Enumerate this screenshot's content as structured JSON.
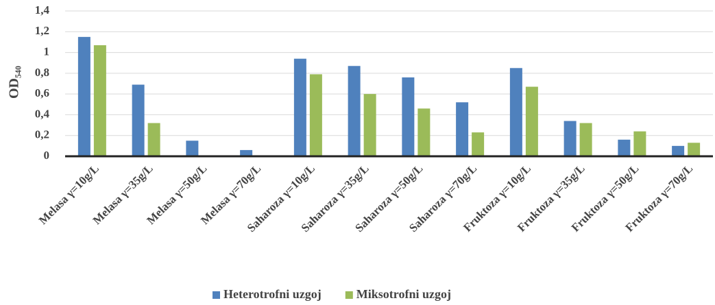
{
  "chart_data": {
    "type": "bar",
    "y_label": "OD₅₄₀",
    "categories": [
      "Melasa γ=10g/L",
      "Melasa γ=35g/L",
      "Melasa γ=50g/L",
      "Melasa γ=70g/L",
      "Saharoza γ=10g/L",
      "Saharoza γ=35g/L",
      "Saharoza γ=50g/L",
      "Saharoza γ=70g/L",
      "Fruktoza γ=10g/L",
      "Fruktoza γ=35g/L",
      "Fruktoza γ=50g/L",
      "Fruktoza γ=70g/L"
    ],
    "series": [
      {
        "name": "Heterotrofni uzgoj",
        "color": "#4f81bd",
        "values": [
          1.15,
          0.69,
          0.15,
          0.06,
          0.94,
          0.87,
          0.76,
          0.52,
          0.85,
          0.34,
          0.16,
          0.1
        ]
      },
      {
        "name": "Miksotrofni uzgoj",
        "color": "#9bbb59",
        "values": [
          1.07,
          0.32,
          0,
          0,
          0.79,
          0.6,
          0.46,
          0.23,
          0.67,
          0.32,
          0.24,
          0.13
        ]
      }
    ],
    "ylim": [
      0,
      1.4
    ],
    "yticks": [
      0,
      {
        "value": 0.2,
        "label": "0,2"
      },
      {
        "value": 0.4,
        "label": "0,4"
      },
      {
        "value": 0.6,
        "label": "0,6"
      },
      {
        "value": 0.8,
        "label": "0,8"
      },
      1,
      {
        "value": 1.2,
        "label": "1,2"
      },
      {
        "value": 1.4,
        "label": "1,4"
      }
    ],
    "grid": true
  }
}
